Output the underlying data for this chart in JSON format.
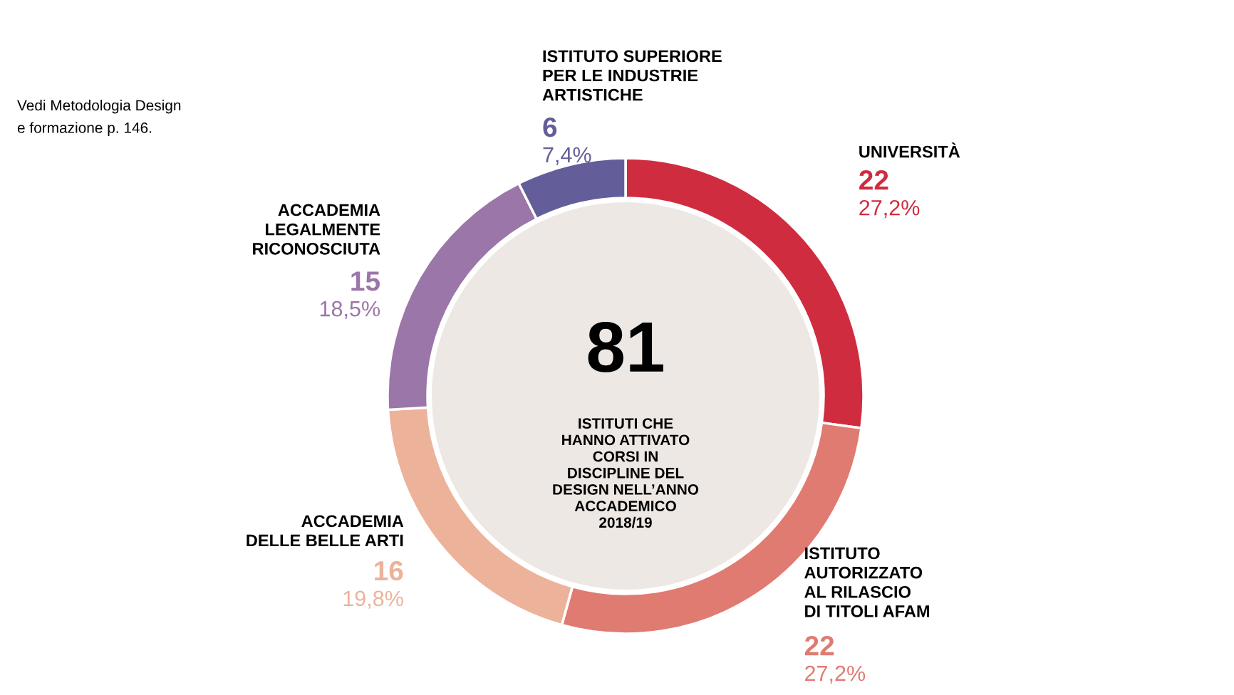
{
  "chart_data": {
    "type": "donut",
    "categories": [
      "UNIVERSITÀ",
      "ISTITUTO\nAUTORIZZATO\nAL RILASCIO\nDI TITOLI AFAM",
      "ACCADEMIA\nDELLE BELLE ARTI",
      "ACCADEMIA\nLEGALMENTE\nRICONOSCIUTA",
      "ISTITUTO SUPERIORE\nPER LE INDUSTRIE\nARTISTICHE"
    ],
    "values": [
      22,
      22,
      16,
      15,
      6
    ],
    "colors": [
      "#d02c40",
      "#e07b72",
      "#edb29a",
      "#9b76a8",
      "#635e9a"
    ],
    "value_labels": [
      "22",
      "22",
      "16",
      "15",
      "6"
    ],
    "annotations": [
      "81",
      "ISTITUTI CHE\nHANNO ATTIVATO\nCORSI IN\nDISCIPLINE DEL\nDESIGN NELL’ANNO\nACCADEMICO\n2018/19",
      "Vedi Metodologia Design\ne formazione p. 146.",
      {
        "text": "27,2%",
        "x": "UNIVERSITÀ"
      },
      {
        "text": "27,2%",
        "x": "ISTITUTO\nAUTORIZZATO\nAL RILASCIO\nDI TITOLI AFAM"
      },
      {
        "text": "19,8%",
        "x": "ACCADEMIA\nDELLE BELLE ARTI"
      },
      {
        "text": "18,5%",
        "x": "ACCADEMIA\nLEGALMENTE\nRICONOSCIUTA"
      },
      {
        "text": "7,4%",
        "x": "ISTITUTO SUPERIORE\nPER LE INDUSTRIE\nARTISTICHE"
      }
    ]
  }
}
